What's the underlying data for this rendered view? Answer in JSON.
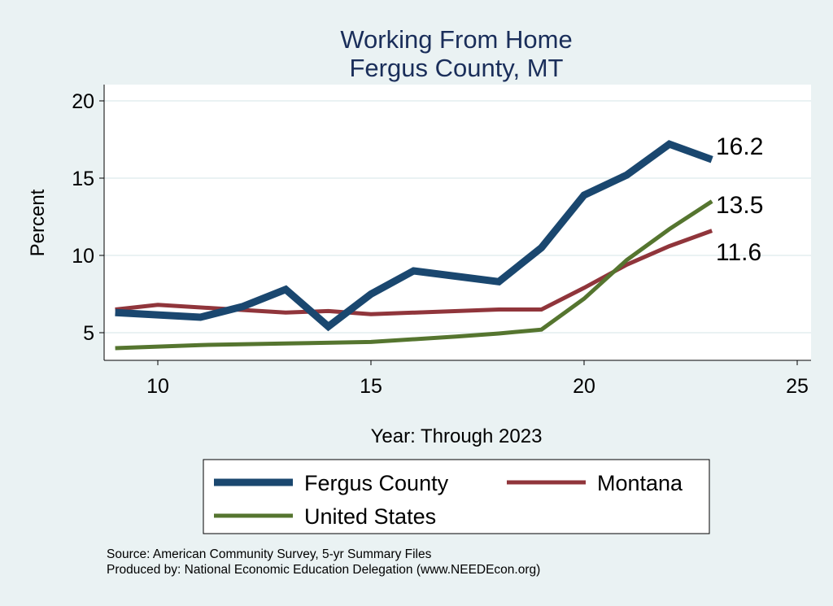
{
  "chart_data": {
    "type": "line",
    "title": "Working From Home",
    "subtitle": "Fergus County, MT",
    "xlabel": "Year: Through 2023",
    "ylabel": "Percent",
    "xlim": [
      9,
      25.2
    ],
    "ylim": [
      3.2,
      21.1
    ],
    "xticks": [
      10,
      15,
      20,
      25
    ],
    "yticks": [
      5,
      10,
      15,
      20
    ],
    "grid": true,
    "legend_position": "bottom",
    "series": [
      {
        "name": "Fergus County",
        "color": "#1a476f",
        "width": 9,
        "x": [
          9,
          11,
          12,
          13,
          14,
          15,
          16,
          18,
          19,
          20,
          21,
          22,
          23
        ],
        "y": [
          6.3,
          6.0,
          6.7,
          7.8,
          5.4,
          7.5,
          9.0,
          8.3,
          10.5,
          13.9,
          15.2,
          17.2,
          16.2
        ],
        "end_label": "16.2"
      },
      {
        "name": "Montana",
        "color": "#90353b",
        "width": 5,
        "x": [
          9,
          10,
          13,
          14,
          15,
          18,
          19,
          20,
          21,
          22,
          23
        ],
        "y": [
          6.5,
          6.8,
          6.3,
          6.4,
          6.2,
          6.5,
          6.5,
          7.9,
          9.4,
          10.6,
          11.6
        ],
        "end_label": "11.6"
      },
      {
        "name": "United States",
        "color": "#55752f",
        "width": 5,
        "x": [
          9,
          11,
          13,
          15,
          17,
          18,
          19,
          20,
          21,
          22,
          23
        ],
        "y": [
          4.0,
          4.2,
          4.3,
          4.4,
          4.75,
          4.95,
          5.2,
          7.2,
          9.7,
          11.7,
          13.5
        ],
        "end_label": "13.5"
      }
    ]
  },
  "footer": {
    "source": "Source: American Community Survey, 5-yr Summary Files",
    "produced": "Produced by: National Economic Education Delegation (www.NEEDEcon.org)"
  }
}
